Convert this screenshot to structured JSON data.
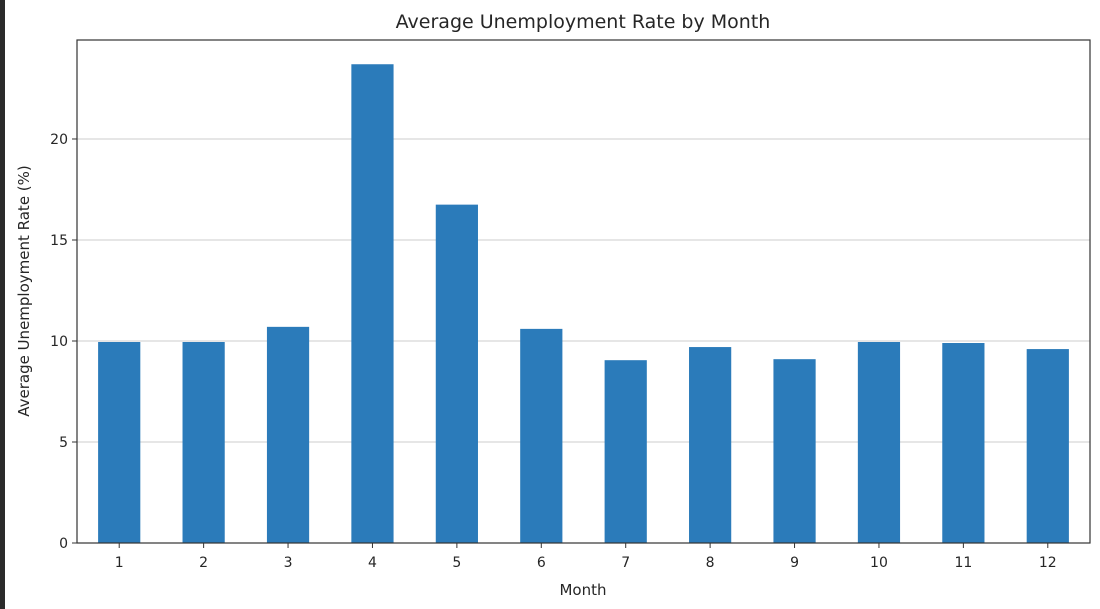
{
  "chart_data": {
    "type": "bar",
    "title": "Average Unemployment Rate by Month",
    "xlabel": "Month",
    "ylabel": "Average Unemployment Rate (%)",
    "categories": [
      "1",
      "2",
      "3",
      "4",
      "5",
      "6",
      "7",
      "8",
      "9",
      "10",
      "11",
      "12"
    ],
    "values": [
      9.95,
      9.95,
      10.7,
      23.7,
      16.75,
      10.6,
      9.05,
      9.7,
      9.1,
      9.95,
      9.9,
      9.6
    ],
    "ylim": [
      0,
      24.9
    ],
    "yticks": [
      0,
      5,
      10,
      15,
      20
    ],
    "grid": "y-major",
    "bar_color": "#2b7bba",
    "grid_color": "#cccccc",
    "legend": "none"
  }
}
